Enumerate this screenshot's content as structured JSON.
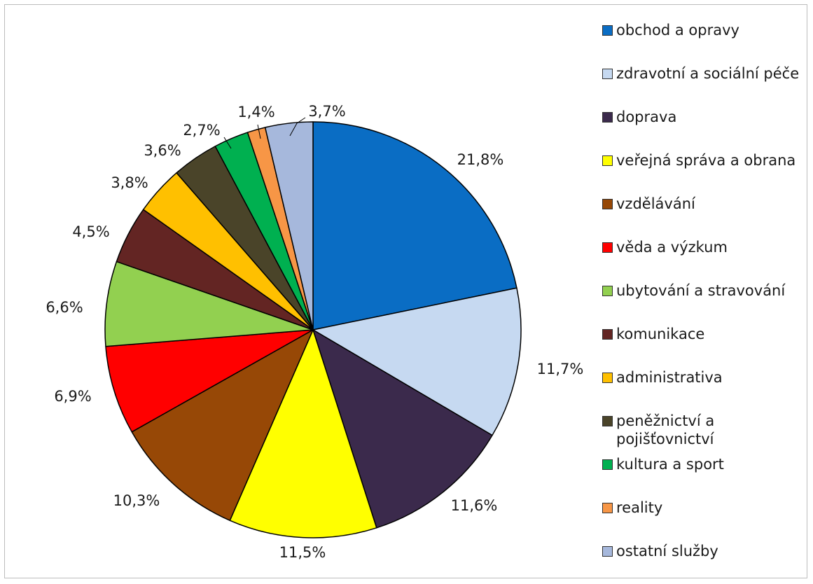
{
  "chart_data": {
    "type": "pie",
    "title": "",
    "slices": [
      {
        "label": "obchod a opravy",
        "value": 21.8,
        "value_label": "21,8%",
        "color": "#0a6dc4"
      },
      {
        "label": "zdravotní a sociální péče",
        "value": 11.7,
        "value_label": "11,7%",
        "color": "#c6d9f1"
      },
      {
        "label": "doprava",
        "value": 11.6,
        "value_label": "11,6%",
        "color": "#3b2a4c"
      },
      {
        "label": "veřejná správa a obrana",
        "value": 11.5,
        "value_label": "11,5%",
        "color": "#ffff00"
      },
      {
        "label": "vzdělávání",
        "value": 10.3,
        "value_label": "10,3%",
        "color": "#974806"
      },
      {
        "label": "věda a výzkum",
        "value": 6.9,
        "value_label": "6,9%",
        "color": "#ff0000"
      },
      {
        "label": "ubytování a stravování",
        "value": 6.6,
        "value_label": "6,6%",
        "color": "#92d050"
      },
      {
        "label": "komunikace",
        "value": 4.5,
        "value_label": "4,5%",
        "color": "#632523"
      },
      {
        "label": "administrativa",
        "value": 3.8,
        "value_label": "3,8%",
        "color": "#ffc000"
      },
      {
        "label": "peněžnictví a pojišťovnictví",
        "value": 3.6,
        "value_label": "3,6%",
        "color": "#4a4429"
      },
      {
        "label": "kultura a sport",
        "value": 2.7,
        "value_label": "2,7%",
        "color": "#00b050"
      },
      {
        "label": "reality",
        "value": 1.4,
        "value_label": "1,4%",
        "color": "#f79646"
      },
      {
        "label": "ostatní služby",
        "value": 3.7,
        "value_label": "3,7%",
        "color": "#a6b8dc"
      }
    ],
    "legend_position": "right"
  }
}
